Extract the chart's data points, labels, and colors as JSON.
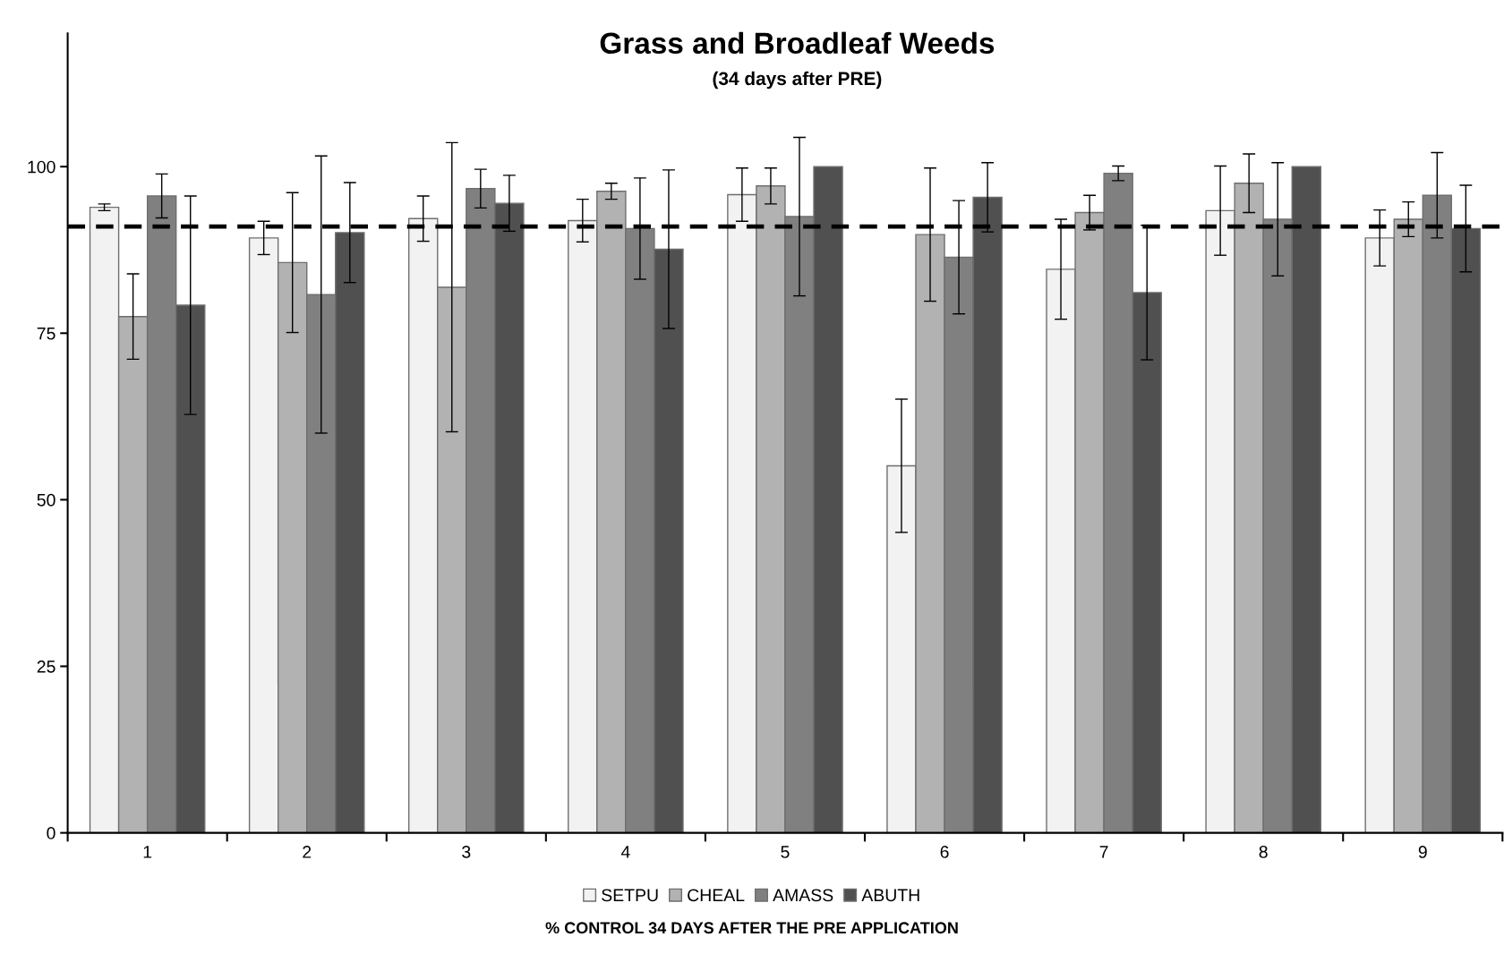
{
  "chart_data": {
    "type": "bar",
    "title": "Grass and Broadleaf Weeds",
    "subtitle": "(34 days after PRE)",
    "xlabel": "% CONTROL 34 DAYS AFTER THE PRE APPLICATION",
    "categories": [
      "1",
      "2",
      "3",
      "4",
      "5",
      "6",
      "7",
      "8",
      "9"
    ],
    "series": [
      {
        "name": "SETPU",
        "color": "#f2f2f2",
        "values": [
          93.9,
          89.3,
          92.2,
          91.9,
          95.8,
          55.1,
          84.6,
          93.4,
          89.3
        ],
        "errors": [
          0.5,
          2.5,
          3.4,
          3.2,
          4.0,
          10.0,
          7.5,
          6.7,
          4.2
        ]
      },
      {
        "name": "CHEAL",
        "color": "#b2b2b2",
        "values": [
          77.5,
          85.6,
          81.9,
          96.3,
          97.1,
          89.8,
          93.1,
          97.5,
          92.1
        ],
        "errors": [
          6.4,
          10.5,
          21.7,
          1.2,
          2.7,
          10.0,
          2.6,
          4.4,
          2.6
        ]
      },
      {
        "name": "AMASS",
        "color": "#808080",
        "values": [
          95.6,
          80.8,
          96.7,
          90.7,
          92.5,
          86.4,
          99.0,
          92.1,
          95.7
        ],
        "errors": [
          3.3,
          20.8,
          2.9,
          7.6,
          11.9,
          8.5,
          1.1,
          8.5,
          6.4
        ]
      },
      {
        "name": "ABUTH",
        "color": "#505050",
        "values": [
          79.2,
          90.1,
          94.5,
          87.6,
          100,
          95.4,
          81.1,
          100,
          90.7
        ],
        "errors": [
          16.4,
          7.5,
          4.2,
          11.9,
          null,
          5.2,
          10.1,
          null,
          6.5
        ]
      }
    ],
    "ylim": [
      0,
      120
    ],
    "yticks": [
      0,
      25,
      50,
      75,
      100
    ],
    "ref_lines": [
      {
        "axis": "y",
        "value": 91,
        "color": "#000000",
        "line_style": "dashed"
      }
    ],
    "grid": false,
    "legend": "bottom"
  }
}
